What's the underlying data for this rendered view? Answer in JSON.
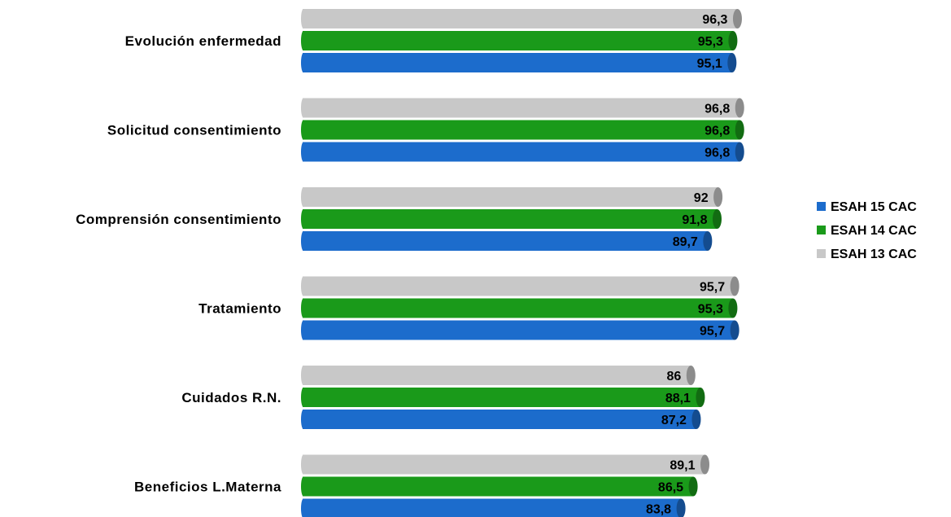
{
  "chart_data": {
    "type": "bar",
    "orientation": "horizontal",
    "categories": [
      "Evolución enfermedad",
      "Solicitud consentimiento",
      "Comprensión consentimiento",
      "Tratamiento",
      "Cuidados R.N.",
      "Beneficios L.Materna"
    ],
    "series": [
      {
        "name": "ESAH 13 CAC",
        "color": "#c8c8c8",
        "values": [
          96.3,
          96.8,
          92,
          95.7,
          86,
          89.1
        ],
        "labels": [
          "96,3",
          "96,8",
          "92",
          "95,7",
          "86",
          "89,1"
        ]
      },
      {
        "name": "ESAH 14 CAC",
        "color": "#1a9a1a",
        "values": [
          95.3,
          96.8,
          91.8,
          95.3,
          88.1,
          86.5
        ],
        "labels": [
          "95,3",
          "96,8",
          "91,8",
          "95,3",
          "88,1",
          "86,5"
        ]
      },
      {
        "name": "ESAH 15 CAC",
        "color": "#1c6ccc",
        "values": [
          95.1,
          96.8,
          89.7,
          95.7,
          87.2,
          83.8
        ],
        "labels": [
          "95,1",
          "96,8",
          "89,7",
          "95,7",
          "87,2",
          "83,8"
        ]
      }
    ],
    "legend": {
      "position": "right",
      "entries": [
        "ESAH 15 CAC",
        "ESAH 14 CAC",
        "ESAH 13 CAC"
      ]
    },
    "grid": false,
    "title": "",
    "xlabel": "",
    "ylabel": ""
  }
}
